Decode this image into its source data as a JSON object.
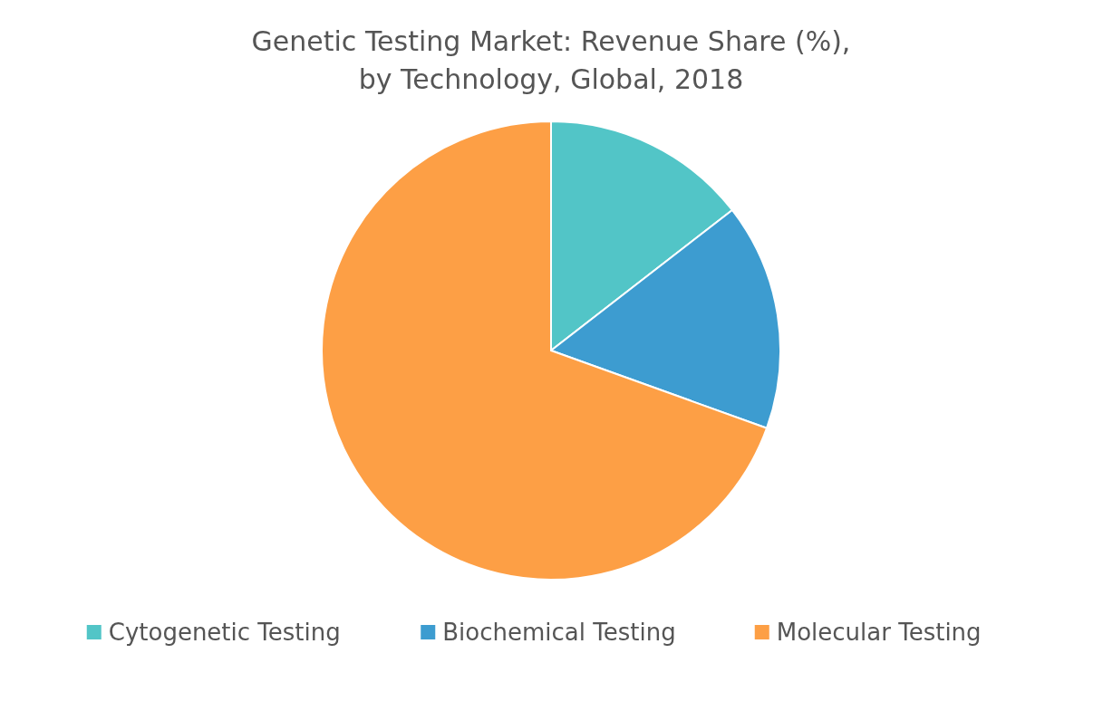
{
  "chart_data": {
    "type": "pie",
    "title": "Genetic Testing Market: Revenue Share (%),\nby Technology, Global, 2018",
    "categories": [
      "Cytogenetic Testing",
      "Biochemical Testing",
      "Molecular Testing"
    ],
    "values": [
      14.5,
      16,
      69.5
    ],
    "colors": [
      "#52c5c7",
      "#3d9cd0",
      "#fd9f45"
    ],
    "legend": "bottom"
  }
}
